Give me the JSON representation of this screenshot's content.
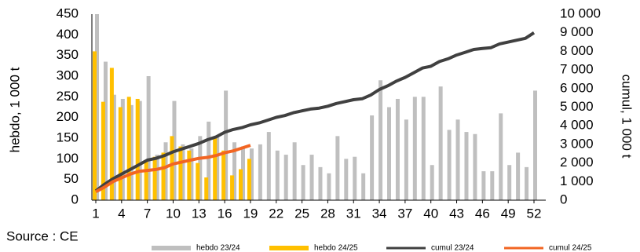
{
  "chart_data": {
    "type": "bar",
    "x": [
      1,
      2,
      3,
      4,
      5,
      6,
      7,
      8,
      9,
      10,
      11,
      12,
      13,
      14,
      15,
      16,
      17,
      18,
      19,
      20,
      21,
      22,
      23,
      24,
      25,
      26,
      27,
      28,
      29,
      30,
      31,
      32,
      33,
      34,
      35,
      36,
      37,
      38,
      39,
      40,
      41,
      42,
      43,
      44,
      45,
      46,
      47,
      48,
      49,
      50,
      51,
      52
    ],
    "xlim": [
      1,
      52
    ],
    "xticks": [
      1,
      4,
      7,
      10,
      13,
      16,
      19,
      22,
      25,
      28,
      31,
      34,
      37,
      40,
      43,
      46,
      49,
      52
    ],
    "ylim": [
      0,
      450
    ],
    "yticks": [
      0,
      50,
      100,
      150,
      200,
      250,
      300,
      350,
      400,
      450
    ],
    "y2lim": [
      0,
      10000
    ],
    "y2ticks": [
      {
        "value": 0,
        "label": "0"
      },
      {
        "value": 1000,
        "label": "1 000"
      },
      {
        "value": 2000,
        "label": "2 000"
      },
      {
        "value": 3000,
        "label": "3 000"
      },
      {
        "value": 4000,
        "label": "4 000"
      },
      {
        "value": 5000,
        "label": "5 000"
      },
      {
        "value": 6000,
        "label": "6 000"
      },
      {
        "value": 7000,
        "label": "7 000"
      },
      {
        "value": 8000,
        "label": "8 000"
      },
      {
        "value": 9000,
        "label": "9 000"
      },
      {
        "value": 10000,
        "label": "10 000"
      }
    ],
    "ylabel": "hebdo, 1 000 t",
    "y2label": "cumul, 1 000 t",
    "note": "Source : CE",
    "legend": "bottom",
    "series": [
      {
        "name": "hebdo 23/24",
        "type": "bar",
        "color": "#bfbfbf",
        "values": [
          450,
          335,
          255,
          245,
          230,
          240,
          300,
          110,
          140,
          240,
          135,
          125,
          155,
          190,
          155,
          265,
          140,
          130,
          125,
          135,
          165,
          120,
          110,
          140,
          85,
          110,
          80,
          65,
          155,
          100,
          105,
          65,
          205,
          290,
          225,
          245,
          195,
          250,
          250,
          85,
          275,
          170,
          195,
          165,
          160,
          70,
          70,
          210,
          85,
          115,
          80,
          265
        ]
      },
      {
        "name": "hebdo 24/25",
        "type": "bar",
        "color": "#ffc000",
        "values": [
          360,
          238,
          320,
          225,
          250,
          245,
          95,
          105,
          115,
          155,
          130,
          120,
          90,
          55,
          150,
          120,
          60,
          75,
          100,
          null,
          null,
          null,
          null,
          null,
          null,
          null,
          null,
          null,
          null,
          null,
          null,
          null,
          null,
          null,
          null,
          null,
          null,
          null,
          null,
          null,
          null,
          null,
          null,
          null,
          null,
          null,
          null,
          null,
          null,
          null,
          null,
          null
        ]
      },
      {
        "name": "cumul 23/24",
        "type": "line",
        "axis": "y2",
        "color": "#404040",
        "values": [
          500,
          850,
          1150,
          1400,
          1650,
          1900,
          2150,
          2250,
          2400,
          2600,
          2750,
          2900,
          3050,
          3250,
          3400,
          3650,
          3800,
          3900,
          4050,
          4150,
          4300,
          4450,
          4550,
          4700,
          4800,
          4900,
          4950,
          5050,
          5200,
          5300,
          5400,
          5450,
          5650,
          5950,
          6150,
          6400,
          6600,
          6850,
          7100,
          7200,
          7450,
          7600,
          7800,
          7950,
          8100,
          8150,
          8200,
          8400,
          8500,
          8600,
          8700,
          9000
        ]
      },
      {
        "name": "cumul 24/25",
        "type": "line",
        "axis": "y2",
        "color": "#f26522",
        "values": [
          450,
          700,
          1000,
          1200,
          1400,
          1550,
          1600,
          1650,
          1750,
          1950,
          2050,
          2150,
          2250,
          2300,
          2400,
          2550,
          2650,
          2800,
          2950,
          null,
          null,
          null,
          null,
          null,
          null,
          null,
          null,
          null,
          null,
          null,
          null,
          null,
          null,
          null,
          null,
          null,
          null,
          null,
          null,
          null,
          null,
          null,
          null,
          null,
          null,
          null,
          null,
          null,
          null,
          null,
          null,
          null
        ]
      }
    ]
  }
}
